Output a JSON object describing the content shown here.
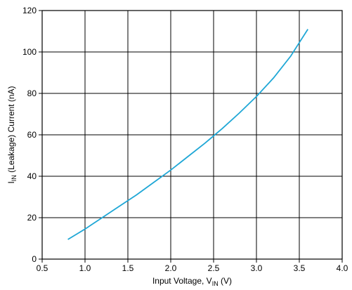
{
  "chart_data": {
    "type": "line",
    "xlabel": {
      "main": "Input Voltage, V",
      "sub": "IN",
      "unit": " (V)"
    },
    "ylabel": {
      "main": "I",
      "sub": "IN",
      "rest": " (Leakage) Current (nA)"
    },
    "xlim": [
      0.5,
      4.0
    ],
    "ylim": [
      0,
      120
    ],
    "xticks": [
      0.5,
      1.0,
      1.5,
      2.0,
      2.5,
      3.0,
      3.5,
      4.0
    ],
    "xtick_labels": [
      "0.5",
      "1.0",
      "1.5",
      "2.0",
      "2.5",
      "3.0",
      "3.5",
      "4.0"
    ],
    "yticks": [
      0,
      20,
      40,
      60,
      80,
      100,
      120
    ],
    "ytick_labels": [
      "0",
      "20",
      "40",
      "60",
      "80",
      "100",
      "120"
    ],
    "grid": true,
    "line_color": "#1fa7d6",
    "series": [
      {
        "x": [
          0.8,
          0.9,
          1.0,
          1.2,
          1.4,
          1.6,
          1.8,
          2.0,
          2.2,
          2.4,
          2.5,
          2.6,
          2.8,
          3.0,
          3.2,
          3.4,
          3.5,
          3.6
        ],
        "values": [
          9.5,
          12,
          14.5,
          20,
          25.5,
          31,
          37,
          43,
          49.5,
          56,
          59.5,
          63,
          70.5,
          78.5,
          87.5,
          98,
          104.5,
          111
        ]
      }
    ]
  }
}
